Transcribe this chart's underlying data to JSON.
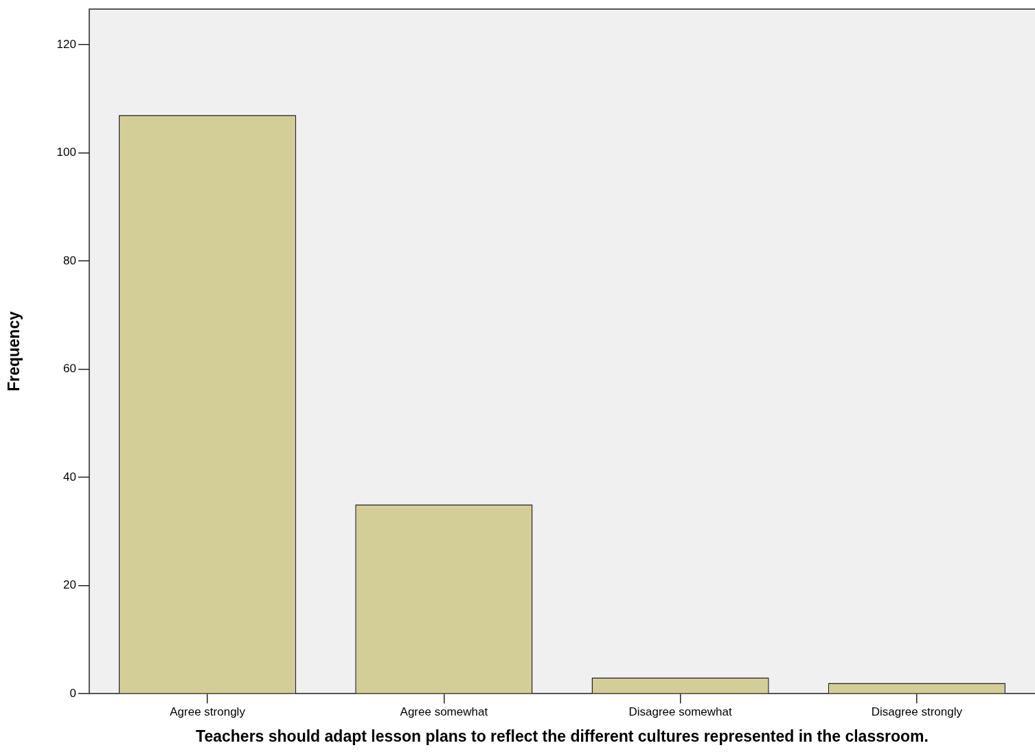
{
  "chart_data": {
    "type": "bar",
    "xlabel": "Teachers should adapt lesson plans to reflect the different cultures represented in the classroom.",
    "ylabel": "Frequency",
    "categories": [
      "Agree strongly",
      "Agree somewhat",
      "Disagree somewhat",
      "Disagree strongly"
    ],
    "values": [
      107,
      35,
      3,
      2
    ],
    "color": "#d3ce97",
    "ylim": [
      0,
      126.6
    ],
    "yticks": [
      0,
      20,
      40,
      60,
      80,
      100,
      120
    ]
  }
}
